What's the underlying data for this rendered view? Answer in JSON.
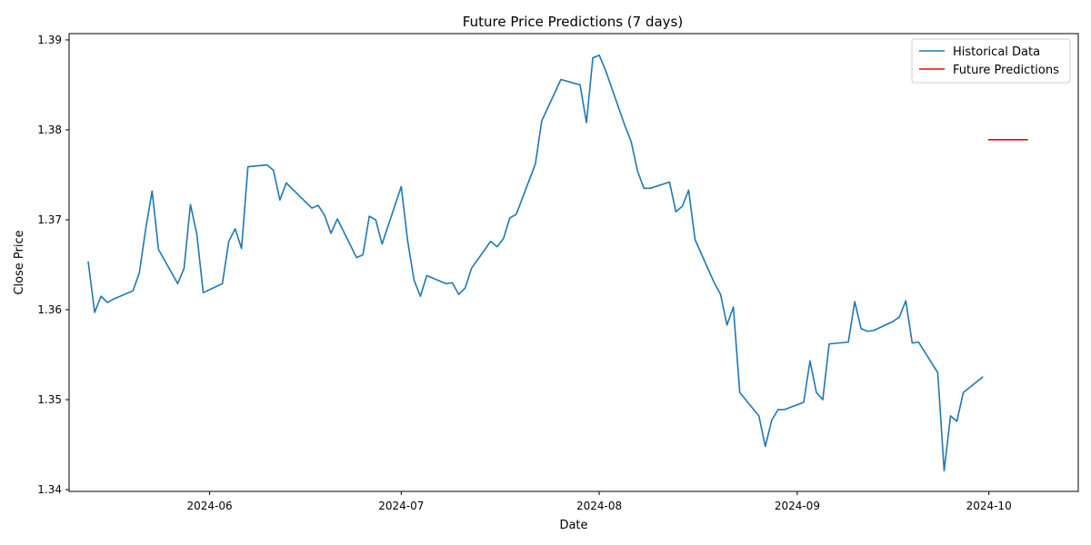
{
  "chart_data": {
    "type": "line",
    "title": "Future Price Predictions (7 days)",
    "xlabel": "Date",
    "ylabel": "Close Price",
    "xlim": [
      "2024-05-10",
      "2024-10-15"
    ],
    "ylim": [
      1.3398,
      1.3907
    ],
    "grid": false,
    "legend_position": "top-right",
    "x_ticks": [
      "2024-06-01",
      "2024-07-01",
      "2024-08-01",
      "2024-09-01",
      "2024-10-01"
    ],
    "x_tick_labels": [
      "2024-06",
      "2024-07",
      "2024-08",
      "2024-09",
      "2024-10"
    ],
    "y_ticks": [
      1.34,
      1.35,
      1.36,
      1.37,
      1.38,
      1.39
    ],
    "y_tick_labels": [
      "1.34",
      "1.35",
      "1.36",
      "1.37",
      "1.38",
      "1.39"
    ],
    "series": [
      {
        "name": "Historical Data",
        "color": "#1f77b4",
        "x": [
          "2024-05-13",
          "2024-05-14",
          "2024-05-15",
          "2024-05-16",
          "2024-05-17",
          "2024-05-20",
          "2024-05-21",
          "2024-05-22",
          "2024-05-23",
          "2024-05-24",
          "2024-05-27",
          "2024-05-28",
          "2024-05-29",
          "2024-05-30",
          "2024-05-31",
          "2024-06-03",
          "2024-06-04",
          "2024-06-05",
          "2024-06-06",
          "2024-06-07",
          "2024-06-10",
          "2024-06-11",
          "2024-06-12",
          "2024-06-13",
          "2024-06-14",
          "2024-06-17",
          "2024-06-18",
          "2024-06-19",
          "2024-06-20",
          "2024-06-21",
          "2024-06-24",
          "2024-06-25",
          "2024-06-26",
          "2024-06-27",
          "2024-06-28",
          "2024-07-01",
          "2024-07-02",
          "2024-07-03",
          "2024-07-04",
          "2024-07-05",
          "2024-07-08",
          "2024-07-09",
          "2024-07-10",
          "2024-07-11",
          "2024-07-12",
          "2024-07-15",
          "2024-07-16",
          "2024-07-17",
          "2024-07-18",
          "2024-07-19",
          "2024-07-22",
          "2024-07-23",
          "2024-07-26",
          "2024-07-29",
          "2024-07-30",
          "2024-07-31",
          "2024-08-01",
          "2024-08-02",
          "2024-08-05",
          "2024-08-06",
          "2024-08-07",
          "2024-08-08",
          "2024-08-09",
          "2024-08-12",
          "2024-08-13",
          "2024-08-14",
          "2024-08-15",
          "2024-08-16",
          "2024-08-19",
          "2024-08-20",
          "2024-08-21",
          "2024-08-22",
          "2024-08-23",
          "2024-08-26",
          "2024-08-27",
          "2024-08-28",
          "2024-08-29",
          "2024-08-30",
          "2024-09-02",
          "2024-09-03",
          "2024-09-04",
          "2024-09-05",
          "2024-09-06",
          "2024-09-09",
          "2024-09-10",
          "2024-09-11",
          "2024-09-12",
          "2024-09-13",
          "2024-09-16",
          "2024-09-17",
          "2024-09-18",
          "2024-09-19",
          "2024-09-20",
          "2024-09-23",
          "2024-09-24",
          "2024-09-25",
          "2024-09-26",
          "2024-09-27",
          "2024-09-30"
        ],
        "values": [
          1.3653,
          1.3597,
          1.3615,
          1.3608,
          1.3612,
          1.3621,
          1.3641,
          1.369,
          1.3732,
          1.3667,
          1.3629,
          1.3646,
          1.3717,
          1.3684,
          1.3619,
          1.3629,
          1.3676,
          1.369,
          1.3668,
          1.3759,
          1.3761,
          1.3755,
          1.3722,
          1.3741,
          1.3734,
          1.3713,
          1.3716,
          1.3705,
          1.3685,
          1.3701,
          1.3658,
          1.3661,
          1.3704,
          1.37,
          1.3673,
          1.3737,
          1.3677,
          1.3633,
          1.3615,
          1.3638,
          1.3629,
          1.363,
          1.3617,
          1.3624,
          1.3646,
          1.3676,
          1.367,
          1.3679,
          1.3702,
          1.3706,
          1.3762,
          1.381,
          1.3856,
          1.385,
          1.3808,
          1.388,
          1.3883,
          1.3866,
          1.3805,
          1.3787,
          1.3754,
          1.3735,
          1.3735,
          1.3742,
          1.3709,
          1.3715,
          1.3733,
          1.3678,
          1.363,
          1.3617,
          1.3583,
          1.3603,
          1.3508,
          1.3482,
          1.3448,
          1.3477,
          1.3489,
          1.3489,
          1.3497,
          1.3543,
          1.3508,
          1.35,
          1.3562,
          1.3564,
          1.3609,
          1.3579,
          1.3576,
          1.3577,
          1.3587,
          1.3592,
          1.361,
          1.3563,
          1.3564,
          1.353,
          1.3421,
          1.3482,
          1.3476,
          1.3508,
          1.3525
        ]
      },
      {
        "name": "Future Predictions",
        "color": "#ff0000",
        "x": [
          "2024-10-01",
          "2024-10-02",
          "2024-10-03",
          "2024-10-04",
          "2024-10-05",
          "2024-10-06",
          "2024-10-07"
        ],
        "values": [
          1.3789,
          1.3789,
          1.3789,
          1.3789,
          1.3789,
          1.3789,
          1.3789
        ]
      }
    ]
  }
}
